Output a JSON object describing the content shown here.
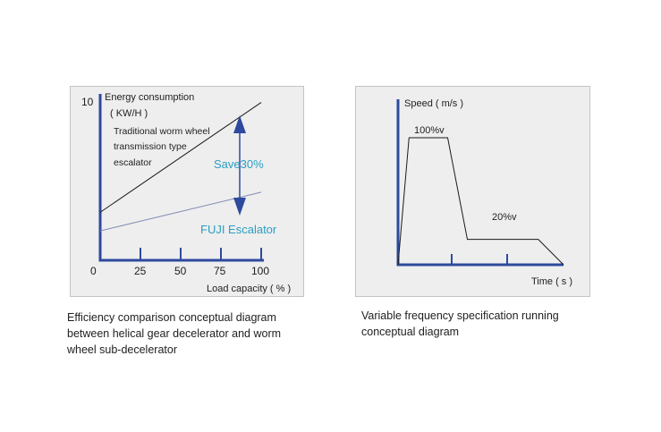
{
  "colors": {
    "axis": "#2e4a9e",
    "accent_text": "#2a9fc2",
    "panel_bg": "#eeeeee"
  },
  "chart_data": [
    {
      "type": "line",
      "y_label_lines": [
        "Energy consumption",
        "( KW/H )"
      ],
      "y_max_label": "10",
      "x_label": "Load capacity ( % )",
      "x_tick_labels": [
        "0",
        "25",
        "50",
        "75",
        "100"
      ],
      "xlim": [
        0,
        100
      ],
      "ylim": [
        0,
        10
      ],
      "series": [
        {
          "name_lines": [
            "Traditional worm wheel",
            "transmission type",
            "escalator"
          ],
          "x": [
            0,
            100
          ],
          "y": [
            3.1,
            10.2
          ]
        },
        {
          "name": "FUJI Escalator",
          "x": [
            0,
            100
          ],
          "y": [
            1.9,
            4.4
          ]
        }
      ],
      "annotation": "Save30%"
    },
    {
      "type": "line",
      "y_label": "Speed ( m/s )",
      "x_label": "Time ( s )",
      "x": [
        0,
        1.4,
        6.3,
        8.8,
        17.8,
        21.0
      ],
      "y": [
        0,
        100,
        100,
        20,
        20,
        0
      ],
      "annotations": [
        "100%v",
        "20%v"
      ]
    }
  ],
  "captions": {
    "left_lines": [
      "Efficiency comparison conceptual diagram",
      "between helical gear decelerator and worm",
      "wheel sub-decelerator"
    ],
    "right_lines": [
      "Variable frequency specification running",
      "conceptual diagram"
    ]
  }
}
